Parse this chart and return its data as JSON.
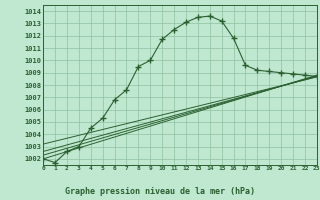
{
  "title": "Graphe pression niveau de la mer (hPa)",
  "bg_color": "#c0e8d0",
  "plot_bg": "#c0e8d0",
  "grid_color": "#90c0a0",
  "line_color": "#2a6030",
  "label_bg": "#70a878",
  "xlim": [
    0,
    23
  ],
  "ylim": [
    1001.5,
    1014.5
  ],
  "xticks": [
    0,
    1,
    2,
    3,
    4,
    5,
    6,
    7,
    8,
    9,
    10,
    11,
    12,
    13,
    14,
    15,
    16,
    17,
    18,
    19,
    20,
    21,
    22,
    23
  ],
  "yticks": [
    1002,
    1003,
    1004,
    1005,
    1006,
    1007,
    1008,
    1009,
    1010,
    1011,
    1012,
    1013,
    1014
  ],
  "series1_x": [
    0,
    1,
    2,
    3,
    4,
    5,
    6,
    7,
    8,
    9,
    10,
    11,
    12,
    13,
    14,
    15,
    16,
    17,
    18,
    19,
    20,
    21,
    22,
    23
  ],
  "series1_y": [
    1002.0,
    1001.7,
    1002.6,
    1003.0,
    1004.5,
    1005.3,
    1006.8,
    1007.6,
    1009.5,
    1010.0,
    1011.7,
    1012.5,
    1013.1,
    1013.5,
    1013.6,
    1013.2,
    1011.8,
    1009.6,
    1009.2,
    1009.1,
    1009.0,
    1008.9,
    1008.8,
    1008.7
  ],
  "series2_x": [
    0,
    23
  ],
  "series2_y": [
    1002.0,
    1008.8
  ],
  "series3_x": [
    0,
    23
  ],
  "series3_y": [
    1002.3,
    1008.75
  ],
  "series4_x": [
    0,
    23
  ],
  "series4_y": [
    1002.6,
    1008.7
  ],
  "series5_x": [
    0,
    23
  ],
  "series5_y": [
    1003.2,
    1008.65
  ]
}
